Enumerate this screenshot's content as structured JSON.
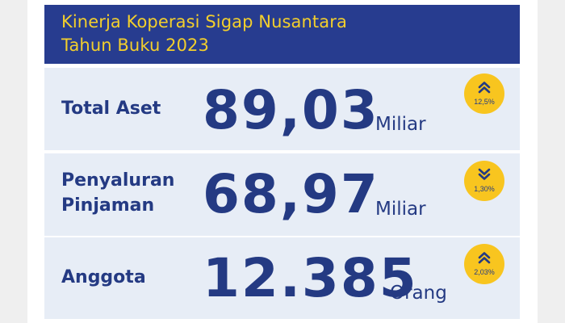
{
  "header": {
    "title_line1": "Kinerja Koperasi Sigap Nusantara",
    "title_line2": "Tahun Buku 2023"
  },
  "colors": {
    "brand_blue": "#273c8f",
    "brand_yellow": "#f3cf2c",
    "badge_yellow": "#f8c51f",
    "card_bg": "#e7edf6"
  },
  "metrics": [
    {
      "label_line1": "Total Aset",
      "value": "89,03",
      "unit": "Miliar",
      "change": "12,5%",
      "trend": "up",
      "icon": "double-chevron-up-icon"
    },
    {
      "label_line1": "Penyaluran",
      "label_line2": "Pinjaman",
      "value": "68,97",
      "unit": "Miliar",
      "change": "1,30%",
      "trend": "down",
      "icon": "double-chevron-down-icon"
    },
    {
      "label_line1": "Anggota",
      "value": "12.385",
      "unit": "Orang",
      "change": "2,03%",
      "trend": "up",
      "icon": "double-chevron-up-icon"
    }
  ]
}
